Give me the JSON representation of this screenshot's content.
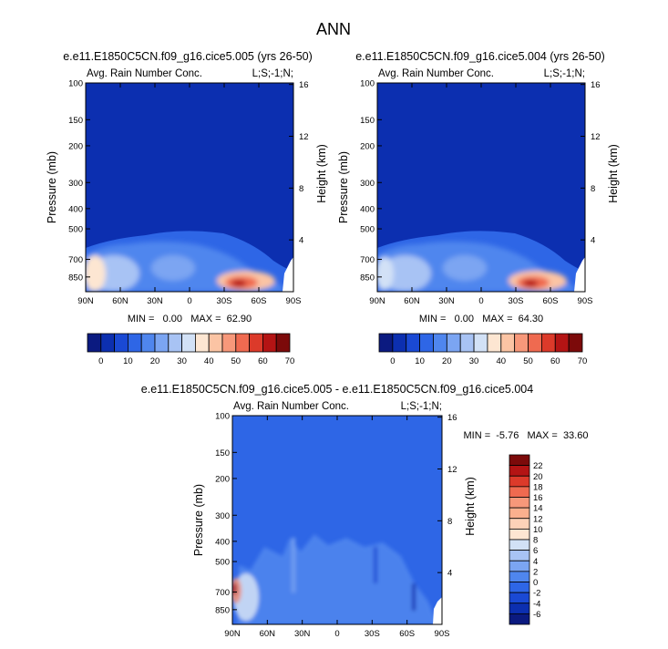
{
  "figure": {
    "main_title": "ANN",
    "x_tick_labels": [
      "90N",
      "60N",
      "30N",
      "0",
      "30S",
      "60S",
      "90S"
    ],
    "pressure_tick_labels": [
      "100",
      "150",
      "200",
      "300",
      "400",
      "500",
      "700",
      "850"
    ],
    "height_tick_labels": [
      "16",
      "12",
      "8",
      "4"
    ],
    "pressure_axis_label": "Pressure (mb)",
    "height_axis_label": "Height (km)",
    "left_corner_label": "Avg. Rain Number Conc.",
    "right_corner_label": "L;S;-1;N;"
  },
  "chart_data": [
    {
      "type": "heatmap",
      "title": "e.e11.E1850C5CN.f09_g16.cice5.005 (yrs 26-50)",
      "subtitle_left": "Avg. Rain Number Conc.",
      "subtitle_right": "L;S;-1;N;",
      "xlabel": "",
      "ylabel": "Pressure (mb)",
      "ylabel_right": "Height (km)",
      "x_ticks": [
        "90N",
        "60N",
        "30N",
        "0",
        "30S",
        "60S",
        "90S"
      ],
      "y_ticks": [
        "100",
        "150",
        "200",
        "300",
        "400",
        "500",
        "700",
        "850"
      ],
      "y_right_ticks": [
        "16",
        "12",
        "8",
        "4"
      ],
      "stats_text": "MIN =   0.00   MAX =  62.90",
      "min": 0.0,
      "max": 62.9,
      "colorbar_labels": [
        "0",
        "10",
        "20",
        "30",
        "40",
        "50",
        "60",
        "70"
      ],
      "colorbar_colors": [
        "#0b1a80",
        "#0c2fb0",
        "#1a49d4",
        "#2e66e6",
        "#4f86ee",
        "#7ba5f2",
        "#a8c3f4",
        "#d2e1f6",
        "#fde6d2",
        "#fbc4a4",
        "#f7987a",
        "#ef6a50",
        "#dc3a2a",
        "#b41414",
        "#7c0a0a"
      ],
      "regions": [
        {
          "lat": 85,
          "p": 700,
          "value": 35
        },
        {
          "lat": -45,
          "p": 800,
          "value": 62.9
        },
        {
          "lat": 20,
          "p": 650,
          "value": 20
        },
        {
          "lat": 0,
          "p": 500,
          "value": 6
        }
      ]
    },
    {
      "type": "heatmap",
      "title": "e.e11.E1850C5CN.f09_g16.cice5.004 (yrs 26-50)",
      "subtitle_left": "Avg. Rain Number Conc.",
      "subtitle_right": "L;S;-1;N;",
      "xlabel": "",
      "ylabel": "Pressure (mb)",
      "ylabel_right": "Height (km)",
      "x_ticks": [
        "90N",
        "60N",
        "30N",
        "0",
        "30S",
        "60S",
        "90S"
      ],
      "y_ticks": [
        "100",
        "150",
        "200",
        "300",
        "400",
        "500",
        "700",
        "850"
      ],
      "y_right_ticks": [
        "16",
        "12",
        "8",
        "4"
      ],
      "stats_text": "MIN =   0.00   MAX =  64.30",
      "min": 0.0,
      "max": 64.3,
      "colorbar_labels": [
        "0",
        "10",
        "20",
        "30",
        "40",
        "50",
        "60",
        "70"
      ],
      "colorbar_colors": [
        "#0b1a80",
        "#0c2fb0",
        "#1a49d4",
        "#2e66e6",
        "#4f86ee",
        "#7ba5f2",
        "#a8c3f4",
        "#d2e1f6",
        "#fde6d2",
        "#fbc4a4",
        "#f7987a",
        "#ef6a50",
        "#dc3a2a",
        "#b41414",
        "#7c0a0a"
      ],
      "regions": [
        {
          "lat": 85,
          "p": 700,
          "value": 30
        },
        {
          "lat": -45,
          "p": 800,
          "value": 64.3
        },
        {
          "lat": 20,
          "p": 650,
          "value": 20
        },
        {
          "lat": 0,
          "p": 500,
          "value": 6
        }
      ]
    },
    {
      "type": "heatmap",
      "title": "e.e11.E1850C5CN.f09_g16.cice5.005 - e.e11.E1850C5CN.f09_g16.cice5.004",
      "subtitle_left": "Avg. Rain Number Conc.",
      "subtitle_right": "L;S;-1;N;",
      "xlabel": "",
      "ylabel": "Pressure (mb)",
      "ylabel_right": "Height (km)",
      "x_ticks": [
        "90N",
        "60N",
        "30N",
        "0",
        "30S",
        "60S",
        "90S"
      ],
      "y_ticks": [
        "100",
        "150",
        "200",
        "300",
        "400",
        "500",
        "700",
        "850"
      ],
      "y_right_ticks": [
        "16",
        "12",
        "8",
        "4"
      ],
      "stats_text": "MIN =  -5.76   MAX =  33.60",
      "min": -5.76,
      "max": 33.6,
      "colorbar_labels": [
        "22",
        "20",
        "18",
        "16",
        "14",
        "12",
        "10",
        "8",
        "6",
        "4",
        "2",
        "0",
        "-2",
        "-4",
        "-6"
      ],
      "colorbar_colors": [
        "#7c0a0a",
        "#b41414",
        "#dc3a2a",
        "#ef6a50",
        "#f7987a",
        "#fbb08e",
        "#fdd2b8",
        "#fde6d2",
        "#d2e1f6",
        "#a8c3f4",
        "#7ba5f2",
        "#4f86ee",
        "#2e66e6",
        "#1a49d4",
        "#0c2fb0",
        "#0b1a80"
      ],
      "regions": [
        {
          "lat": 88,
          "p": 700,
          "value": 33.6
        },
        {
          "lat": 70,
          "p": 650,
          "value": 6
        },
        {
          "lat": 0,
          "p": 450,
          "value": 1
        }
      ]
    }
  ]
}
